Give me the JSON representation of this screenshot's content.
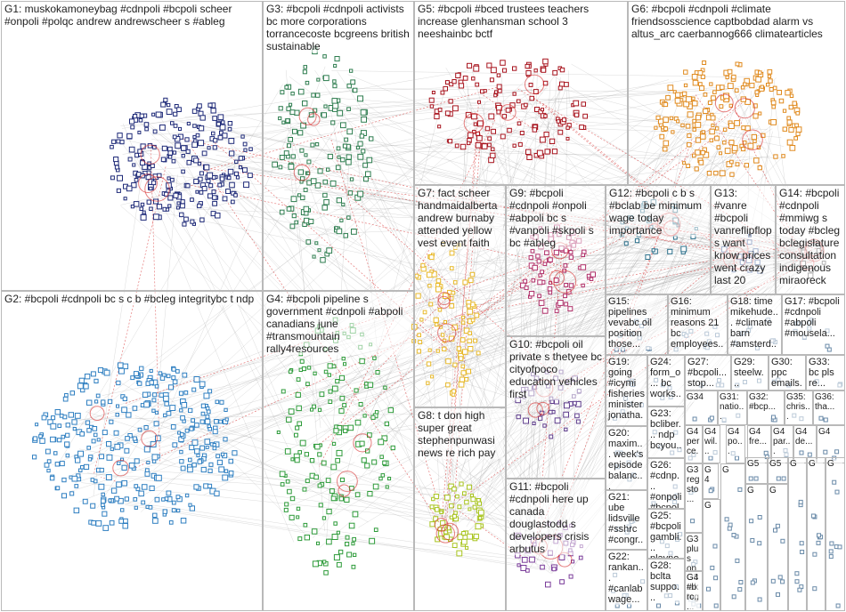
{
  "groups": [
    {
      "id": "G1",
      "label": "G1: muskokamoneybag #cdnpoli #bcpoli scheer #onpoli #polqc andrew andrewscheer s #ableg",
      "color": "#1e2a78"
    },
    {
      "id": "G2",
      "label": "G2: #bcpoli #cdnpoli bc s c b #bcleg integritybc t ndp",
      "color": "#2f7fc1"
    },
    {
      "id": "G3",
      "label": "G3: #bcpoli #cdnpoli activists bc more corporations torrancecoste bcgreens british sustainable",
      "color": "#2e7d4f"
    },
    {
      "id": "G4",
      "label": "G4: #bcpoli pipeline s government #cdnpoli #abpoli canadians june #transmountain rally4resources",
      "color": "#2e9b3a"
    },
    {
      "id": "G5",
      "label": "G5: #bcpoli #bced trustees teachers increase glenhansman school 3 neeshainbc bctf",
      "color": "#a8141e"
    },
    {
      "id": "G6",
      "label": "G6: #bcpoli #cdnpoli #climate friendsosscience captbobdad alarm vs altus_arc caerbannog666 climatearticles",
      "color": "#e08a1e"
    },
    {
      "id": "G7",
      "label": "G7: fact scheer handmaidalberta andrew burnaby attended yellow vest event faith",
      "color": "#e8b92a"
    },
    {
      "id": "G8",
      "label": "G8: t don high super great stephenpunwasi news re rich pay",
      "color": "#a8c41e"
    },
    {
      "id": "G9",
      "label": "G9: #bcpoli #cdnpoli #onpoli #abpoli bc s #vanpoli #skpoli s bc #ableg",
      "color": "#b0306a"
    },
    {
      "id": "G10",
      "label": "G10: #bcpoli oil private s thetyee bc cityofpoco education vehicles first",
      "color": "#5e3c8c"
    },
    {
      "id": "G11",
      "label": "G11: #bcpoli #cdnpoli here up canada douglastodd s developers crisis arbutus",
      "color": "#7a3c9a"
    },
    {
      "id": "G12",
      "label": "G12: #bcpoli c b s #bclab be minimum wage today importance",
      "color": "#2a6f8a"
    },
    {
      "id": "G13",
      "label": "G13: #vanre #bcpoli vanreflipflops want know prices went crazy last 20",
      "color": "#3a5a9a"
    },
    {
      "id": "G14",
      "label": "G14: #bcpoli #cdnpoli #mmiwg s today #bcleg bclegislature consultation indigenous miraoreck",
      "color": "#555555"
    },
    {
      "id": "G15",
      "label": "G15: pipelines vevabc oil position those...",
      "color": "#6a6a6a"
    },
    {
      "id": "G16",
      "label": "G16: minimum reasons 21 bc employees...",
      "color": "#6a6a6a"
    },
    {
      "id": "G17",
      "label": "G17: #bcpoli #cdnpoli #abpoli #mousela...",
      "color": "#6a6a6a"
    },
    {
      "id": "G18",
      "label": "G18: time mikehude... #climate barn #amsterd...",
      "color": "#6a6a6a"
    },
    {
      "id": "G19",
      "label": "G19: going #icymi fisheries minister jonatha...",
      "color": "#6a6a6a"
    },
    {
      "id": "G20",
      "label": "G20: maxim... week's episode balanc...",
      "color": "#6a6a6a"
    },
    {
      "id": "G21",
      "label": "G21: ube lidsville #sshrc #congr...",
      "color": "#6a6a6a"
    },
    {
      "id": "G22",
      "label": "G22: rankan... #canlab wage...",
      "color": "#6a6a6a"
    },
    {
      "id": "G23",
      "label": "G23: bcliber... ndp bcyou...",
      "color": "#6a6a6a"
    },
    {
      "id": "G24",
      "label": "G24: form_o... bc works...",
      "color": "#6a6a6a"
    },
    {
      "id": "G25",
      "label": "G25: #bcpoli gambli... playno...",
      "color": "#6a6a6a"
    },
    {
      "id": "G26",
      "label": "G26: #cdnp... #onpoli #bcpol...",
      "color": "#6a6a6a"
    },
    {
      "id": "G27",
      "label": "G27: #bcpoli... stop...",
      "color": "#6a6a6a"
    },
    {
      "id": "G28",
      "label": "G28: bclta suppo...",
      "color": "#6a6a6a"
    },
    {
      "id": "G29",
      "label": "G29: steelw...",
      "color": "#6a6a6a"
    },
    {
      "id": "G30",
      "label": "G30: ppc emails...",
      "color": "#6a6a6a"
    },
    {
      "id": "G31",
      "label": "G31: natio...",
      "color": "#6a6a6a"
    },
    {
      "id": "G32",
      "label": "G32: #bcp...",
      "color": "#6a6a6a"
    },
    {
      "id": "G33",
      "label": "G33: bc pls re...",
      "color": "#6a6a6a"
    },
    {
      "id": "G34",
      "label": "G34",
      "color": "#6a6a6a"
    },
    {
      "id": "G35",
      "label": "G35: chris...",
      "color": "#6a6a6a"
    },
    {
      "id": "G36",
      "label": "G36: tha...",
      "color": "#6a6a6a"
    },
    {
      "id": "G3x",
      "label": "G3 plus on mi...",
      "color": "#6a6a6a"
    },
    {
      "id": "G3y",
      "label": "G3 tak tog...",
      "color": "#6a6a6a"
    },
    {
      "id": "G3z",
      "label": "G3 reg sto...",
      "color": "#6a6a6a"
    },
    {
      "id": "G4a",
      "label": "G4 per ce...",
      "color": "#6a6a6a"
    },
    {
      "id": "G4b",
      "label": "G4 wil...",
      "color": "#6a6a6a"
    },
    {
      "id": "G4c",
      "label": "G4 po...",
      "color": "#6a6a6a"
    },
    {
      "id": "G4d",
      "label": "G4 fre...",
      "color": "#6a6a6a"
    },
    {
      "id": "G4e",
      "label": "G4 par...",
      "color": "#6a6a6a"
    },
    {
      "id": "G4f",
      "label": "G4 de...",
      "color": "#6a6a6a"
    },
    {
      "id": "G4g",
      "label": "G4 #b rc...",
      "color": "#6a6a6a"
    },
    {
      "id": "G4h",
      "label": "G4",
      "color": "#6a6a6a"
    },
    {
      "id": "G4i",
      "label": "G4",
      "color": "#6a6a6a"
    },
    {
      "id": "G5a",
      "label": "G5",
      "color": "#6a6a6a"
    },
    {
      "id": "G5b",
      "label": "G5",
      "color": "#6a6a6a"
    },
    {
      "id": "Ga",
      "label": "G",
      "color": "#6a6a6a"
    },
    {
      "id": "Gb",
      "label": "G",
      "color": "#6a6a6a"
    },
    {
      "id": "Gc",
      "label": "G",
      "color": "#6a6a6a"
    },
    {
      "id": "Gd",
      "label": "G",
      "color": "#6a6a6a"
    },
    {
      "id": "Ge",
      "label": "G",
      "color": "#6a6a6a"
    },
    {
      "id": "Gf",
      "label": "G",
      "color": "#6a6a6a"
    },
    {
      "id": "Gg",
      "label": "G",
      "color": "#6a6a6a"
    },
    {
      "id": "Gh",
      "label": "G",
      "color": "#6a6a6a"
    }
  ]
}
